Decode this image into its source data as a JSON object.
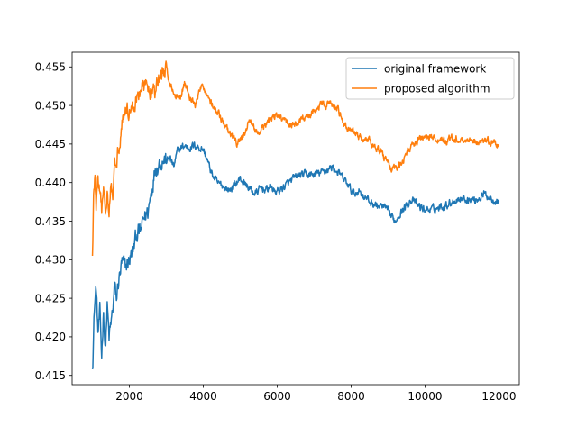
{
  "chart_data": {
    "type": "line",
    "title": "",
    "xlabel": "",
    "ylabel": "",
    "xlim": [
      450,
      12550
    ],
    "ylim": [
      0.4138,
      0.4569
    ],
    "xticks": [
      2000,
      4000,
      6000,
      8000,
      10000,
      12000
    ],
    "xtick_labels": [
      "2000",
      "4000",
      "6000",
      "8000",
      "10000",
      "12000"
    ],
    "yticks": [
      0.415,
      0.42,
      0.425,
      0.43,
      0.435,
      0.44,
      0.445,
      0.45,
      0.455
    ],
    "ytick_labels": [
      "0.415",
      "0.420",
      "0.425",
      "0.430",
      "0.435",
      "0.440",
      "0.445",
      "0.450",
      "0.455"
    ],
    "grid": false,
    "legend_position": "upper-right",
    "series": [
      {
        "name": "original framework",
        "color": "#1f77b4",
        "noise": 0.0009,
        "noise_decay_at": 3000,
        "points": [
          [
            1000,
            0.4158
          ],
          [
            1050,
            0.4235
          ],
          [
            1100,
            0.4265
          ],
          [
            1150,
            0.4205
          ],
          [
            1200,
            0.423
          ],
          [
            1250,
            0.4175
          ],
          [
            1300,
            0.4235
          ],
          [
            1350,
            0.4182
          ],
          [
            1400,
            0.424
          ],
          [
            1450,
            0.4198
          ],
          [
            1500,
            0.4215
          ],
          [
            1550,
            0.4235
          ],
          [
            1600,
            0.4265
          ],
          [
            1650,
            0.4248
          ],
          [
            1700,
            0.427
          ],
          [
            1800,
            0.4295
          ],
          [
            1900,
            0.429
          ],
          [
            2000,
            0.43
          ],
          [
            2100,
            0.4312
          ],
          [
            2200,
            0.4335
          ],
          [
            2300,
            0.4335
          ],
          [
            2400,
            0.4355
          ],
          [
            2500,
            0.4362
          ],
          [
            2600,
            0.439
          ],
          [
            2700,
            0.442
          ],
          [
            2800,
            0.4425
          ],
          [
            2900,
            0.443
          ],
          [
            3000,
            0.4428
          ],
          [
            3100,
            0.4432
          ],
          [
            3200,
            0.442
          ],
          [
            3300,
            0.444
          ],
          [
            3400,
            0.4445
          ],
          [
            3500,
            0.4448
          ],
          [
            3600,
            0.4445
          ],
          [
            3700,
            0.4447
          ],
          [
            3800,
            0.4448
          ],
          [
            3900,
            0.4445
          ],
          [
            4000,
            0.4443
          ],
          [
            4100,
            0.443
          ],
          [
            4200,
            0.4415
          ],
          [
            4300,
            0.4405
          ],
          [
            4400,
            0.4398
          ],
          [
            4500,
            0.4397
          ],
          [
            4600,
            0.4393
          ],
          [
            4700,
            0.439
          ],
          [
            4800,
            0.4395
          ],
          [
            4900,
            0.44
          ],
          [
            5000,
            0.4405
          ],
          [
            5100,
            0.44
          ],
          [
            5200,
            0.4395
          ],
          [
            5300,
            0.439
          ],
          [
            5400,
            0.4385
          ],
          [
            5500,
            0.439
          ],
          [
            5600,
            0.4393
          ],
          [
            5700,
            0.439
          ],
          [
            5800,
            0.4395
          ],
          [
            5900,
            0.439
          ],
          [
            6000,
            0.4388
          ],
          [
            6200,
            0.4395
          ],
          [
            6400,
            0.4403
          ],
          [
            6600,
            0.441
          ],
          [
            6800,
            0.441
          ],
          [
            7000,
            0.441
          ],
          [
            7200,
            0.4413
          ],
          [
            7400,
            0.4418
          ],
          [
            7500,
            0.442
          ],
          [
            7700,
            0.441
          ],
          [
            7900,
            0.4398
          ],
          [
            8000,
            0.439
          ],
          [
            8100,
            0.4385
          ],
          [
            8200,
            0.439
          ],
          [
            8300,
            0.4385
          ],
          [
            8500,
            0.4375
          ],
          [
            8700,
            0.437
          ],
          [
            8900,
            0.4368
          ],
          [
            9000,
            0.4362
          ],
          [
            9100,
            0.4355
          ],
          [
            9200,
            0.435
          ],
          [
            9300,
            0.436
          ],
          [
            9500,
            0.437
          ],
          [
            9600,
            0.4378
          ],
          [
            9700,
            0.4375
          ],
          [
            9800,
            0.437
          ],
          [
            10000,
            0.4365
          ],
          [
            10200,
            0.4365
          ],
          [
            10400,
            0.4368
          ],
          [
            10600,
            0.4372
          ],
          [
            10800,
            0.4377
          ],
          [
            11000,
            0.438
          ],
          [
            11200,
            0.4378
          ],
          [
            11400,
            0.4378
          ],
          [
            11600,
            0.4385
          ],
          [
            11800,
            0.438
          ],
          [
            12000,
            0.4375
          ]
        ]
      },
      {
        "name": "proposed algorithm",
        "color": "#ff7f0e",
        "noise": 0.00085,
        "noise_decay_at": 3000,
        "points": [
          [
            1000,
            0.4305
          ],
          [
            1030,
            0.438
          ],
          [
            1070,
            0.4405
          ],
          [
            1100,
            0.437
          ],
          [
            1150,
            0.4405
          ],
          [
            1200,
            0.4385
          ],
          [
            1250,
            0.436
          ],
          [
            1300,
            0.4395
          ],
          [
            1350,
            0.4365
          ],
          [
            1400,
            0.439
          ],
          [
            1450,
            0.437
          ],
          [
            1500,
            0.44
          ],
          [
            1550,
            0.439
          ],
          [
            1600,
            0.442
          ],
          [
            1700,
            0.4445
          ],
          [
            1750,
            0.446
          ],
          [
            1800,
            0.448
          ],
          [
            1900,
            0.4495
          ],
          [
            2000,
            0.4495
          ],
          [
            2100,
            0.4495
          ],
          [
            2200,
            0.451
          ],
          [
            2300,
            0.452
          ],
          [
            2400,
            0.4525
          ],
          [
            2500,
            0.4525
          ],
          [
            2600,
            0.452
          ],
          [
            2700,
            0.4515
          ],
          [
            2800,
            0.4535
          ],
          [
            2900,
            0.4545
          ],
          [
            3000,
            0.4545
          ],
          [
            3100,
            0.453
          ],
          [
            3200,
            0.4515
          ],
          [
            3300,
            0.451
          ],
          [
            3400,
            0.4515
          ],
          [
            3500,
            0.453
          ],
          [
            3600,
            0.4515
          ],
          [
            3700,
            0.4505
          ],
          [
            3800,
            0.45
          ],
          [
            3900,
            0.452
          ],
          [
            4000,
            0.4525
          ],
          [
            4100,
            0.4515
          ],
          [
            4200,
            0.4505
          ],
          [
            4300,
            0.4495
          ],
          [
            4400,
            0.449
          ],
          [
            4500,
            0.448
          ],
          [
            4600,
            0.447
          ],
          [
            4700,
            0.4465
          ],
          [
            4800,
            0.4458
          ],
          [
            4900,
            0.445
          ],
          [
            5000,
            0.4455
          ],
          [
            5100,
            0.4462
          ],
          [
            5200,
            0.4475
          ],
          [
            5300,
            0.4478
          ],
          [
            5400,
            0.447
          ],
          [
            5500,
            0.4462
          ],
          [
            5600,
            0.447
          ],
          [
            5700,
            0.4475
          ],
          [
            5800,
            0.448
          ],
          [
            5900,
            0.4487
          ],
          [
            6000,
            0.4485
          ],
          [
            6200,
            0.448
          ],
          [
            6400,
            0.4475
          ],
          [
            6600,
            0.4478
          ],
          [
            6800,
            0.4485
          ],
          [
            7000,
            0.4495
          ],
          [
            7200,
            0.45
          ],
          [
            7400,
            0.4502
          ],
          [
            7500,
            0.45
          ],
          [
            7700,
            0.449
          ],
          [
            7800,
            0.4475
          ],
          [
            7900,
            0.447
          ],
          [
            8000,
            0.4468
          ],
          [
            8200,
            0.446
          ],
          [
            8400,
            0.4455
          ],
          [
            8600,
            0.445
          ],
          [
            8800,
            0.444
          ],
          [
            9000,
            0.4425
          ],
          [
            9100,
            0.4415
          ],
          [
            9200,
            0.4418
          ],
          [
            9400,
            0.443
          ],
          [
            9600,
            0.4445
          ],
          [
            9800,
            0.4455
          ],
          [
            10000,
            0.446
          ],
          [
            10200,
            0.4458
          ],
          [
            10400,
            0.4455
          ],
          [
            10600,
            0.4455
          ],
          [
            10800,
            0.4457
          ],
          [
            11000,
            0.4455
          ],
          [
            11200,
            0.4455
          ],
          [
            11400,
            0.4453
          ],
          [
            11600,
            0.4455
          ],
          [
            11800,
            0.4452
          ],
          [
            12000,
            0.4448
          ]
        ]
      }
    ]
  }
}
